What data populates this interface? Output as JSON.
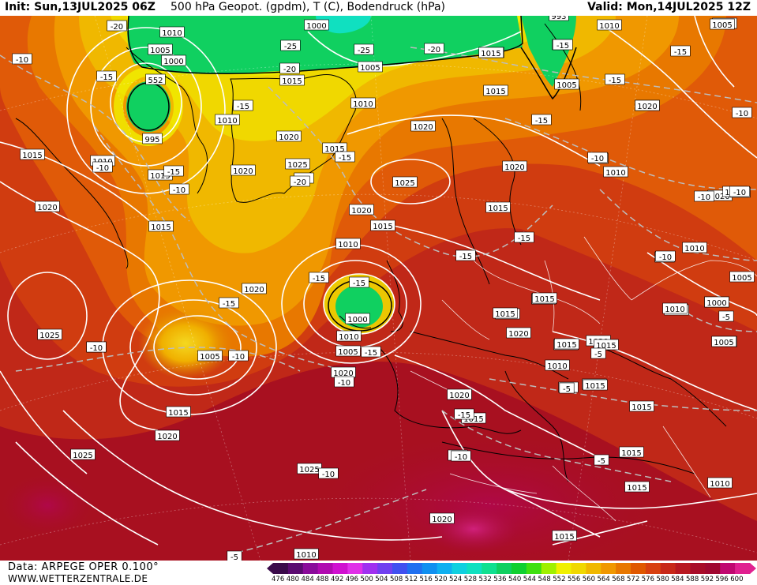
{
  "header": {
    "init": "Init: Sun,13JUL2025 06Z",
    "title": "500 hPa Geopot. (gpdm), T (C), Bodendruck (hPa)",
    "valid": "Valid: Mon,14JUL2025 12Z"
  },
  "footer": {
    "data_source": "Data: ARPEGE OPER 0.100°",
    "website": "WWW.WETTERZENTRALE.DE"
  },
  "colorbar": {
    "ticks": [
      "476",
      "480",
      "484",
      "488",
      "492",
      "496",
      "500",
      "504",
      "508",
      "512",
      "516",
      "520",
      "524",
      "528",
      "532",
      "536",
      "540",
      "544",
      "548",
      "552",
      "556",
      "560",
      "564",
      "568",
      "572",
      "576",
      "580",
      "584",
      "588",
      "592",
      "596",
      "600"
    ],
    "colors": [
      "#3a0a4a",
      "#5a0a70",
      "#8a0a9a",
      "#b00ab0",
      "#d010d0",
      "#e030e8",
      "#a030f0",
      "#7040f0",
      "#4050f0",
      "#2070f0",
      "#1090f0",
      "#10b0f0",
      "#10d0e0",
      "#10e0c0",
      "#10e090",
      "#10d060",
      "#10d030",
      "#40e010",
      "#a0f000",
      "#f0f000",
      "#f0d800",
      "#f0b800",
      "#f09800",
      "#e87800",
      "#e05800",
      "#d84010",
      "#c82818",
      "#b81820",
      "#a80c28",
      "#a00830",
      "#c00870",
      "#e02090"
    ]
  },
  "pressure_labels": [
    "1010",
    "1000",
    "1005",
    "1000",
    "552",
    "995",
    "1010",
    "1005",
    "1015",
    "1020",
    "1020",
    "1015",
    "1025",
    "1020",
    "1010",
    "1015",
    "1020",
    "1015",
    "1010",
    "1005",
    "1010",
    "1025",
    "1020",
    "1015",
    "1010",
    "1025",
    "1020",
    "1015",
    "1020",
    "1005",
    "1015",
    "1010",
    "1015",
    "1020",
    "1015",
    "1020",
    "1020",
    "1025",
    "1025",
    "1020",
    "1015",
    "1015",
    "1015",
    "1015",
    "1015",
    "1010",
    "1020",
    "1010",
    "1020",
    "1015",
    "1020",
    "1015",
    "1010",
    "1010",
    "1010",
    "1000",
    "1005",
    "1010",
    "1005",
    "1015",
    "1015",
    "1020",
    "1010",
    "1000",
    "1005",
    "1015",
    "1010",
    "1010",
    "1015",
    "1015",
    "1015",
    "1015",
    "993",
    "1005",
    "1010",
    "1000",
    "1005",
    "1020",
    "1015",
    "1015",
    "1015"
  ],
  "temp_labels": [
    "-10",
    "-15",
    "-20",
    "-15",
    "-25",
    "-20",
    "-20",
    "-15",
    "-10",
    "-15",
    "-25",
    "-15",
    "-15",
    "-20",
    "-15",
    "-10",
    "-10",
    "-10",
    "-15",
    "-15",
    "-15",
    "-15",
    "-15",
    "-10",
    "-20",
    "-10",
    "-15",
    "-15",
    "-15",
    "-15",
    "-10",
    "-10",
    "-5",
    "-5",
    "-10",
    "-5",
    "-5",
    "-5",
    "-10",
    "-10",
    "-15",
    "-10",
    "-10",
    "-20",
    "-10",
    "-10",
    "-15"
  ]
}
